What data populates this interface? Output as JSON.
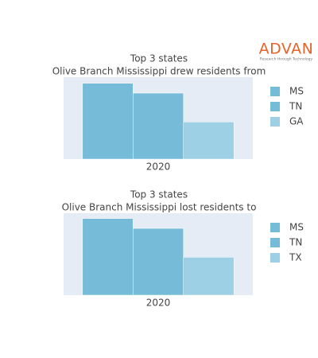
{
  "logo": {
    "name": "ADVAN",
    "tagline": "Research through Technology"
  },
  "chart_data": [
    {
      "type": "bar",
      "title": "Top 3 states",
      "subtitle": "Olive Branch Mississippi drew residents from",
      "categories": [
        "2020"
      ],
      "ylim": [
        0,
        108
      ],
      "series": [
        {
          "name": "MS",
          "color": "#76bcd8",
          "values": [
            100
          ]
        },
        {
          "name": "TN",
          "color": "#76bcd8",
          "values": [
            87
          ]
        },
        {
          "name": "GA",
          "color": "#9dd0e4",
          "values": [
            49
          ]
        }
      ]
    },
    {
      "type": "bar",
      "title": "Top 3 states",
      "subtitle": "Olive Branch Mississippi lost residents to",
      "categories": [
        "2020"
      ],
      "ylim": [
        0,
        108
      ],
      "series": [
        {
          "name": "MS",
          "color": "#76bcd8",
          "values": [
            101
          ]
        },
        {
          "name": "TN",
          "color": "#76bcd8",
          "values": [
            88
          ]
        },
        {
          "name": "TX",
          "color": "#9dd0e4",
          "values": [
            50
          ]
        }
      ]
    }
  ]
}
